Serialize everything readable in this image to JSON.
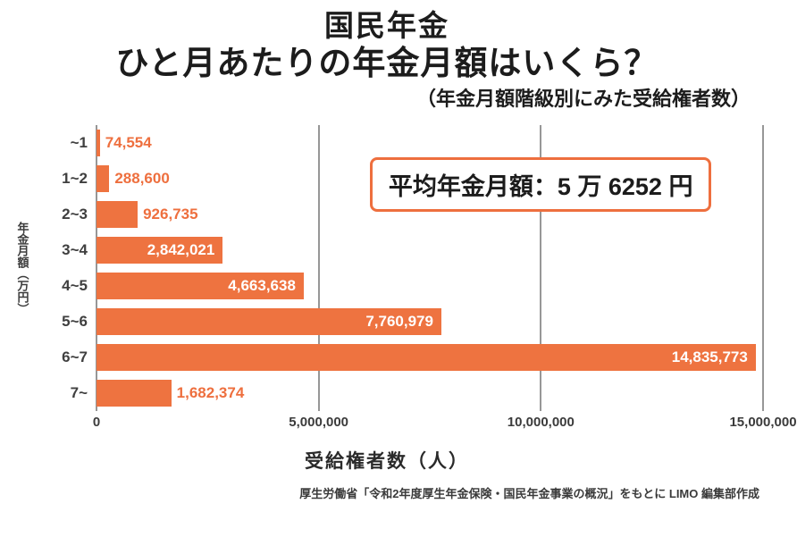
{
  "title": {
    "line1": "国民年金",
    "line2": "ひと月あたりの年金月額はいくら？",
    "line3": "（年金月額階級別にみた受給権者数）"
  },
  "callout": "平均年金月額：5 万 6252 円",
  "chart_data": {
    "type": "bar",
    "orientation": "horizontal",
    "title": "国民年金 ひと月あたりの年金月額はいくら？",
    "categories": [
      "~1",
      "1~2",
      "2~3",
      "3~4",
      "4~5",
      "5~6",
      "6~7",
      "7~"
    ],
    "values": [
      74554,
      288600,
      926735,
      2842021,
      4663638,
      7760979,
      14835773,
      1682374
    ],
    "value_labels": [
      "74,554",
      "288,600",
      "926,735",
      "2,842,021",
      "4,663,638",
      "7,760,979",
      "14,835,773",
      "1,682,374"
    ],
    "xlabel": "受給権者数（人）",
    "ylabel": "年金月額（万円）",
    "xlim": [
      0,
      15000000
    ],
    "xticks": [
      0,
      5000000,
      10000000,
      15000000
    ],
    "xtick_labels": [
      "0",
      "5,000,000",
      "10,000,000",
      "15,000,000"
    ],
    "bar_color": "#ee7340",
    "grid": true,
    "legend": "none"
  },
  "source": "厚生労働省「令和2年度厚生年金保険・国民年金事業の概況」をもとに LIMO 編集部作成"
}
